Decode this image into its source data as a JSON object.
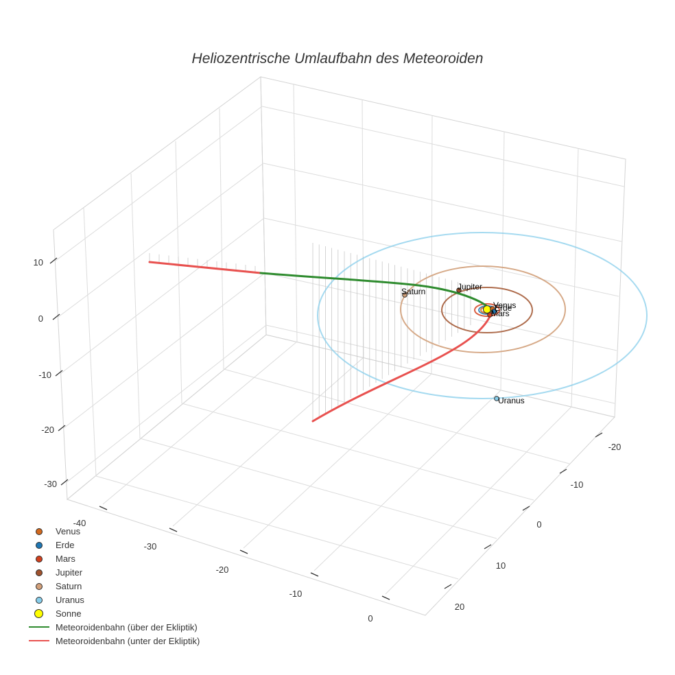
{
  "chart_data": {
    "type": "scatter3d",
    "title": "Heliozentrische Umlaufbahn des Meteoroiden",
    "axes": {
      "x": {
        "ticks": [
          0,
          -10,
          -20,
          -30,
          -40
        ]
      },
      "y": {
        "ticks": [
          20,
          10,
          0,
          -10,
          -20
        ]
      },
      "z": {
        "ticks": [
          10,
          0,
          -10,
          -20,
          -30
        ]
      }
    },
    "planets": [
      {
        "name": "Venus",
        "color": "#d2691e",
        "orbit_radius": 0.72
      },
      {
        "name": "Erde",
        "color": "#1f77b4",
        "orbit_radius": 1.0
      },
      {
        "name": "Mars",
        "color": "#d2401e",
        "orbit_radius": 1.52
      },
      {
        "name": "Jupiter",
        "color": "#a0522d",
        "orbit_radius": 5.2
      },
      {
        "name": "Saturn",
        "color": "#d2a07a",
        "orbit_radius": 9.5
      },
      {
        "name": "Uranus",
        "color": "#87ceeb",
        "orbit_radius": 19.2
      }
    ],
    "sun": {
      "name": "Sonne",
      "color": "#ffff00"
    },
    "trajectory": {
      "above_label": "Meteoroidenbahn (über der Ekliptik)",
      "below_label": "Meteoroidenbahn (unter der Ekliptik)",
      "above_color": "#2e8b2e",
      "below_color": "#e8514f"
    }
  }
}
